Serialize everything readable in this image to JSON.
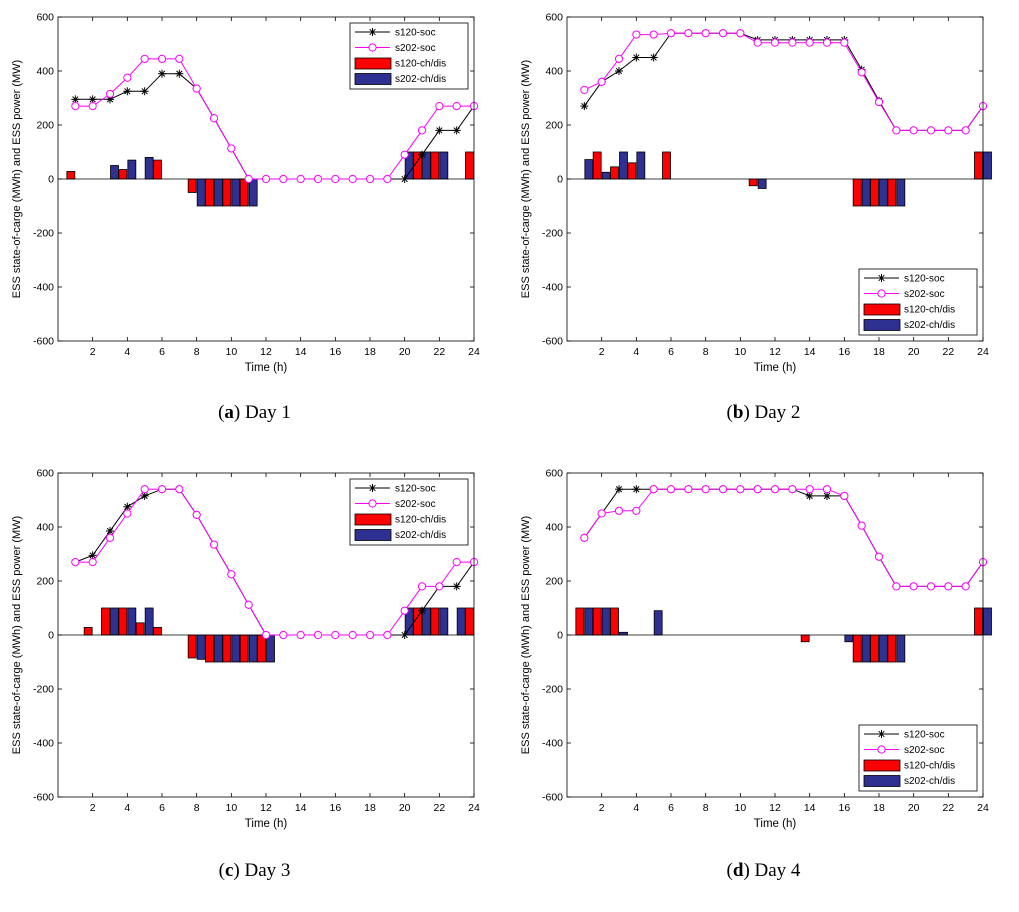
{
  "chart_data": [
    {
      "type": "bar+line",
      "caption_letter": "a",
      "caption_text": "Day 1",
      "xlabel": "Time (h)",
      "ylabel": "ESS state-of-carge (MWh) and ESS power (MW)",
      "xlim": [
        0,
        24
      ],
      "ylim": [
        -600,
        600
      ],
      "xticks": [
        2,
        4,
        6,
        8,
        10,
        12,
        14,
        16,
        18,
        20,
        22,
        24
      ],
      "yticks": [
        -600,
        -400,
        -200,
        0,
        200,
        400,
        600
      ],
      "legend_position": "top-right",
      "x": [
        1,
        2,
        3,
        4,
        5,
        6,
        7,
        8,
        9,
        10,
        11,
        12,
        13,
        14,
        15,
        16,
        17,
        18,
        19,
        20,
        21,
        22,
        23,
        24
      ],
      "series": [
        {
          "name": "s120-soc",
          "kind": "line",
          "marker": "star",
          "color": "#000000",
          "values": [
            295,
            295,
            295,
            325,
            325,
            390,
            390,
            335,
            225,
            113,
            0,
            0,
            0,
            0,
            0,
            0,
            0,
            0,
            0,
            0,
            90,
            180,
            180,
            270
          ]
        },
        {
          "name": "s202-soc",
          "kind": "line",
          "marker": "circle",
          "color": "#ff00ff",
          "values": [
            270,
            270,
            315,
            375,
            445,
            445,
            445,
            335,
            225,
            113,
            0,
            0,
            0,
            0,
            0,
            0,
            0,
            0,
            0,
            90,
            180,
            270,
            270,
            270
          ]
        },
        {
          "name": "s120-ch/dis",
          "kind": "bar",
          "color": "#ff0000",
          "values": [
            28,
            0,
            0,
            35,
            0,
            70,
            0,
            -50,
            -100,
            -100,
            -100,
            0,
            0,
            0,
            0,
            0,
            0,
            0,
            0,
            0,
            100,
            100,
            0,
            100
          ]
        },
        {
          "name": "s202-ch/dis",
          "kind": "bar",
          "color": "#2e3192",
          "values": [
            0,
            0,
            50,
            70,
            80,
            0,
            0,
            -100,
            -100,
            -100,
            -100,
            0,
            0,
            0,
            0,
            0,
            0,
            0,
            0,
            100,
            100,
            100,
            0,
            0
          ]
        }
      ]
    },
    {
      "type": "bar+line",
      "caption_letter": "b",
      "caption_text": "Day 2",
      "xlabel": "Time (h)",
      "ylabel": "ESS state-of-carge (MWh) and ESS power (MW)",
      "xlim": [
        0,
        24
      ],
      "ylim": [
        -600,
        600
      ],
      "xticks": [
        2,
        4,
        6,
        8,
        10,
        12,
        14,
        16,
        18,
        20,
        22,
        24
      ],
      "yticks": [
        -600,
        -400,
        -200,
        0,
        200,
        400,
        600
      ],
      "legend_position": "bottom-right",
      "x": [
        1,
        2,
        3,
        4,
        5,
        6,
        7,
        8,
        9,
        10,
        11,
        12,
        13,
        14,
        15,
        16,
        17,
        18,
        19,
        20,
        21,
        22,
        23,
        24
      ],
      "series": [
        {
          "name": "s120-soc",
          "kind": "line",
          "marker": "star",
          "color": "#000000",
          "values": [
            270,
            360,
            400,
            450,
            450,
            540,
            540,
            540,
            540,
            540,
            515,
            515,
            515,
            515,
            515,
            515,
            405,
            290,
            180,
            180,
            180,
            180,
            180,
            270
          ]
        },
        {
          "name": "s202-soc",
          "kind": "line",
          "marker": "circle",
          "color": "#ff00ff",
          "values": [
            330,
            360,
            445,
            535,
            535,
            540,
            540,
            540,
            540,
            540,
            505,
            505,
            505,
            505,
            505,
            505,
            395,
            285,
            180,
            180,
            180,
            180,
            180,
            270
          ]
        },
        {
          "name": "s120-ch/dis",
          "kind": "bar",
          "color": "#ff0000",
          "values": [
            0,
            100,
            45,
            60,
            0,
            100,
            0,
            0,
            0,
            0,
            -25,
            0,
            0,
            0,
            0,
            0,
            -100,
            -100,
            -100,
            0,
            0,
            0,
            0,
            100
          ]
        },
        {
          "name": "s202-ch/dis",
          "kind": "bar",
          "color": "#2e3192",
          "values": [
            72,
            25,
            100,
            100,
            0,
            0,
            0,
            0,
            0,
            0,
            -35,
            0,
            0,
            0,
            0,
            0,
            -100,
            -100,
            -100,
            0,
            0,
            0,
            0,
            100
          ]
        }
      ]
    },
    {
      "type": "bar+line",
      "caption_letter": "c",
      "caption_text": "Day 3",
      "xlabel": "Time (h)",
      "ylabel": "ESS state-of-carge (MWh) and ESS power (MW)",
      "xlim": [
        0,
        24
      ],
      "ylim": [
        -600,
        600
      ],
      "xticks": [
        2,
        4,
        6,
        8,
        10,
        12,
        14,
        16,
        18,
        20,
        22,
        24
      ],
      "yticks": [
        -600,
        -400,
        -200,
        0,
        200,
        400,
        600
      ],
      "legend_position": "top-right",
      "x": [
        1,
        2,
        3,
        4,
        5,
        6,
        7,
        8,
        9,
        10,
        11,
        12,
        13,
        14,
        15,
        16,
        17,
        18,
        19,
        20,
        21,
        22,
        23,
        24
      ],
      "series": [
        {
          "name": "s120-soc",
          "kind": "line",
          "marker": "star",
          "color": "#000000",
          "values": [
            270,
            295,
            385,
            475,
            515,
            540,
            540,
            445,
            335,
            225,
            112,
            0,
            0,
            0,
            0,
            0,
            0,
            0,
            0,
            0,
            90,
            180,
            180,
            270
          ]
        },
        {
          "name": "s202-soc",
          "kind": "line",
          "marker": "circle",
          "color": "#ff00ff",
          "values": [
            270,
            270,
            360,
            450,
            540,
            540,
            540,
            445,
            335,
            225,
            112,
            0,
            0,
            0,
            0,
            0,
            0,
            0,
            0,
            90,
            180,
            180,
            270,
            270
          ]
        },
        {
          "name": "s120-ch/dis",
          "kind": "bar",
          "color": "#ff0000",
          "values": [
            0,
            28,
            100,
            100,
            45,
            28,
            0,
            -85,
            -100,
            -100,
            -100,
            -100,
            0,
            0,
            0,
            0,
            0,
            0,
            0,
            0,
            100,
            100,
            0,
            100
          ]
        },
        {
          "name": "s202-ch/dis",
          "kind": "bar",
          "color": "#2e3192",
          "values": [
            0,
            0,
            100,
            100,
            100,
            0,
            0,
            -90,
            -100,
            -100,
            -100,
            -100,
            0,
            0,
            0,
            0,
            0,
            0,
            0,
            100,
            100,
            100,
            100,
            0
          ]
        }
      ]
    },
    {
      "type": "bar+line",
      "caption_letter": "d",
      "caption_text": "Day 4",
      "xlabel": "Time (h)",
      "ylabel": "ESS state-of-carge (MWh) and ESS power (MW)",
      "xlim": [
        0,
        24
      ],
      "ylim": [
        -600,
        600
      ],
      "xticks": [
        2,
        4,
        6,
        8,
        10,
        12,
        14,
        16,
        18,
        20,
        22,
        24
      ],
      "yticks": [
        -600,
        -400,
        -200,
        0,
        200,
        400,
        600
      ],
      "legend_position": "bottom-right",
      "x": [
        1,
        2,
        3,
        4,
        5,
        6,
        7,
        8,
        9,
        10,
        11,
        12,
        13,
        14,
        15,
        16,
        17,
        18,
        19,
        20,
        21,
        22,
        23,
        24
      ],
      "series": [
        {
          "name": "s120-soc",
          "kind": "line",
          "marker": "star",
          "color": "#000000",
          "values": [
            360,
            450,
            540,
            540,
            540,
            540,
            540,
            540,
            540,
            540,
            540,
            540,
            540,
            515,
            515,
            515,
            405,
            290,
            180,
            180,
            180,
            180,
            180,
            270
          ]
        },
        {
          "name": "s202-soc",
          "kind": "line",
          "marker": "circle",
          "color": "#ff00ff",
          "values": [
            360,
            450,
            460,
            460,
            540,
            540,
            540,
            540,
            540,
            540,
            540,
            540,
            540,
            540,
            540,
            515,
            405,
            290,
            180,
            180,
            180,
            180,
            180,
            270
          ]
        },
        {
          "name": "s120-ch/dis",
          "kind": "bar",
          "color": "#ff0000",
          "values": [
            100,
            100,
            100,
            0,
            0,
            0,
            0,
            0,
            0,
            0,
            0,
            0,
            0,
            -25,
            0,
            0,
            -100,
            -100,
            -100,
            0,
            0,
            0,
            0,
            100
          ]
        },
        {
          "name": "s202-ch/dis",
          "kind": "bar",
          "color": "#2e3192",
          "values": [
            100,
            100,
            10,
            0,
            90,
            0,
            0,
            0,
            0,
            0,
            0,
            0,
            0,
            0,
            0,
            -25,
            -100,
            -100,
            -100,
            0,
            0,
            0,
            0,
            100
          ]
        }
      ]
    }
  ]
}
